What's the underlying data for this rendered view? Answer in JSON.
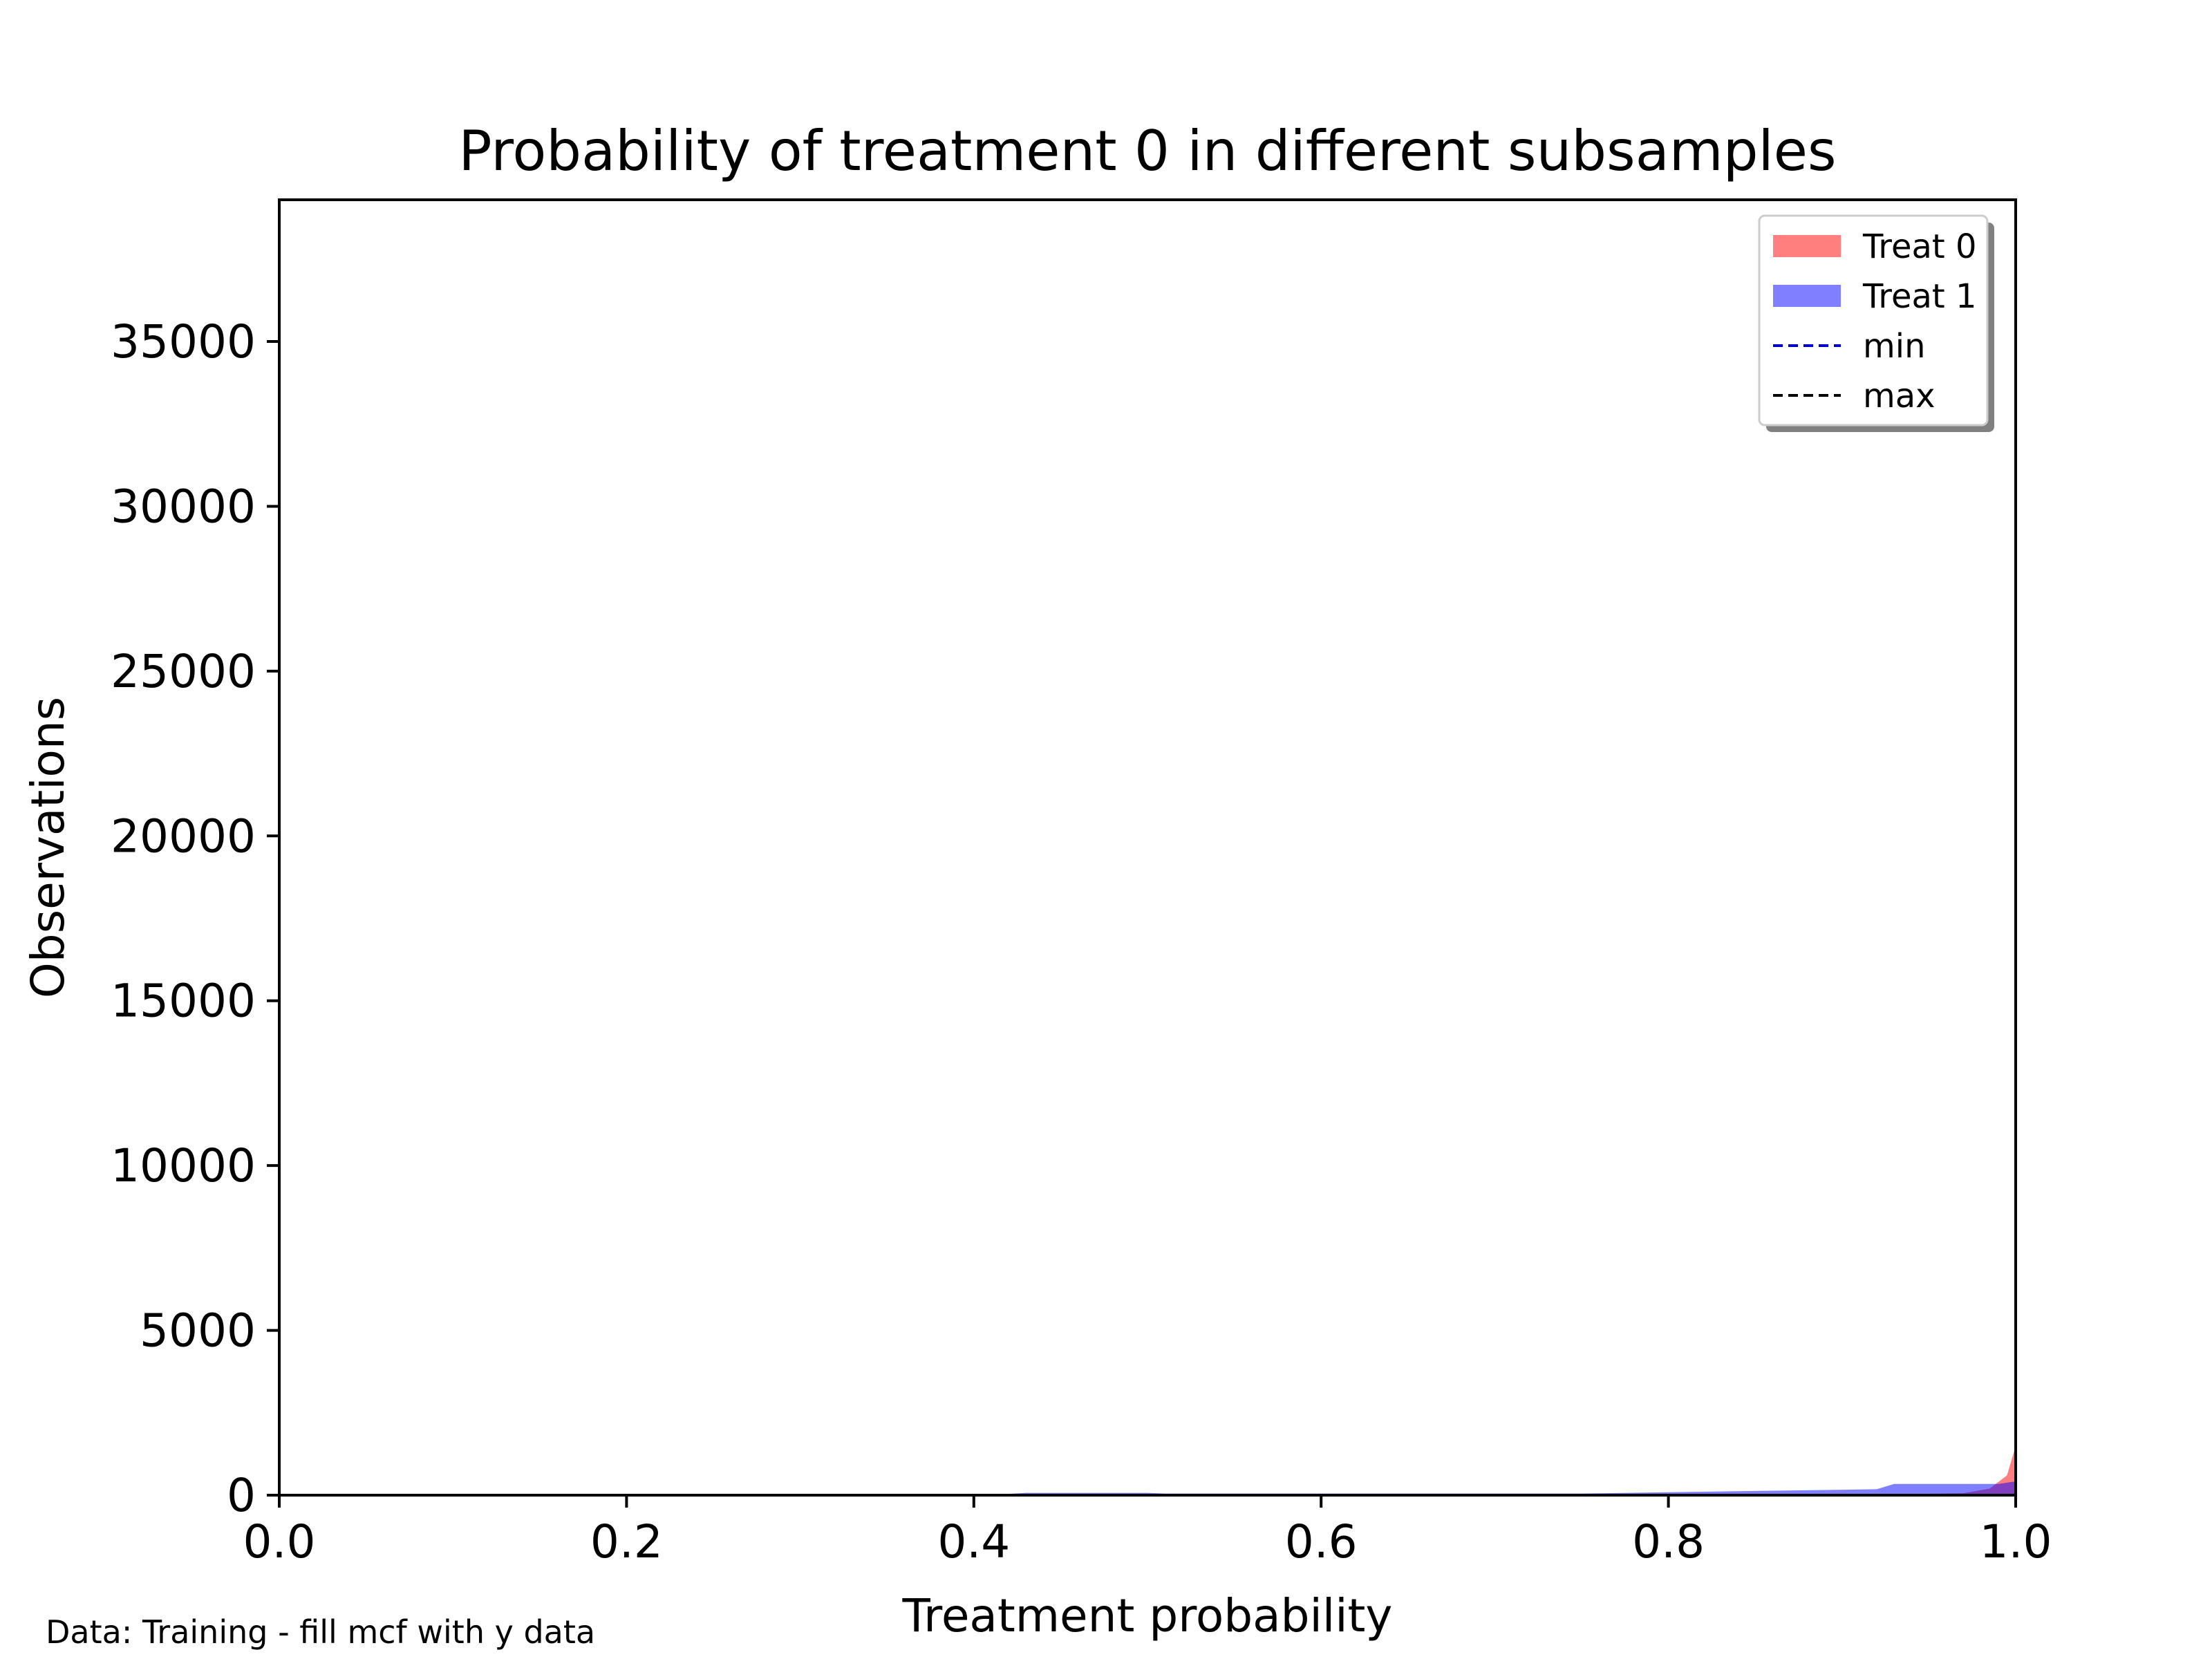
{
  "chart_data": {
    "type": "area",
    "title": "Probability of treatment 0 in different subsamples",
    "xlabel": "Treatment probability",
    "ylabel": "Observations",
    "xlim": [
      0.0,
      1.0
    ],
    "ylim": [
      0,
      39300
    ],
    "x_ticks": [
      0.0,
      0.2,
      0.4,
      0.6,
      0.8,
      1.0
    ],
    "x_tick_labels": [
      "0.0",
      "0.2",
      "0.4",
      "0.6",
      "0.8",
      "1.0"
    ],
    "y_ticks": [
      0,
      5000,
      10000,
      15000,
      20000,
      25000,
      30000,
      35000
    ],
    "y_tick_labels": [
      "0",
      "5000",
      "10000",
      "15000",
      "20000",
      "25000",
      "30000",
      "35000"
    ],
    "grid": false,
    "legend_position": "top-right",
    "series": [
      {
        "name": "Treat 0",
        "kind": "density-area",
        "color": "#ff0000",
        "opacity": 0.5,
        "x": [
          0.0,
          0.9,
          0.97,
          0.985,
          0.995,
          1.0
        ],
        "values": [
          0,
          0,
          60,
          200,
          600,
          1500
        ]
      },
      {
        "name": "Treat 1",
        "kind": "density-area",
        "color": "#0000ff",
        "opacity": 0.5,
        "x": [
          0.0,
          0.09,
          0.1,
          0.42,
          0.43,
          0.5,
          0.51,
          0.75,
          0.84,
          0.92,
          0.93,
          0.99,
          1.0
        ],
        "values": [
          0,
          0,
          40,
          40,
          70,
          70,
          50,
          50,
          120,
          180,
          340,
          340,
          420
        ]
      },
      {
        "name": "min",
        "kind": "dashed-line",
        "color": "#0000cc"
      },
      {
        "name": "max",
        "kind": "dashed-line",
        "color": "#000000"
      }
    ]
  },
  "footer": {
    "note": "Data: Training - fill mcf with y data"
  }
}
